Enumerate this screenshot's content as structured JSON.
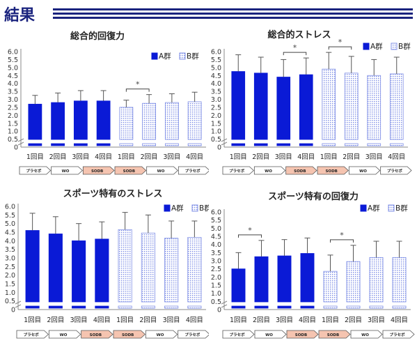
{
  "header": {
    "title": "結果"
  },
  "colors": {
    "accent": "#1a237e",
    "group_a": "#0a1ad6",
    "group_b_pattern": "#7f8fe6",
    "wo_arrow": "#ffffff",
    "diet_arrow": "#f5c4b0"
  },
  "chart_data": [
    {
      "type": "bar",
      "title": "総合的回復力",
      "categories": [
        "1回目",
        "2回目",
        "3回目",
        "4回目",
        "1回目",
        "2回目",
        "3回目",
        "4回目"
      ],
      "series": [
        {
          "name": "A群",
          "group_indices": [
            0,
            1,
            2,
            3
          ]
        },
        {
          "name": "B群",
          "group_indices": [
            4,
            5,
            6,
            7
          ]
        }
      ],
      "values": [
        2.7,
        2.8,
        2.9,
        2.9,
        2.5,
        2.75,
        2.8,
        2.85
      ],
      "errors": [
        0.55,
        0.6,
        0.65,
        0.65,
        0.45,
        0.55,
        0.55,
        0.6
      ],
      "ylim": [
        0,
        6.0
      ],
      "yticks": [
        "0",
        "0.5",
        "1.0",
        "1.5",
        "2.0",
        "2.5",
        "3.0",
        "3.5",
        "4.0",
        "4.5",
        "5.0",
        "5.5",
        "6.0"
      ],
      "legend_position": "top-right",
      "significance": [
        {
          "from": 4,
          "to": 5,
          "label": "*"
        }
      ],
      "phases": [
        {
          "label": "プラセボ",
          "style": "wo"
        },
        {
          "label": "WO",
          "style": "wo"
        },
        {
          "label": "SODB",
          "style": "diet"
        },
        {
          "label": "SODB",
          "style": "diet"
        },
        {
          "label": "WO",
          "style": "wo"
        },
        {
          "label": "プラセボ",
          "style": "wo"
        }
      ]
    },
    {
      "type": "bar",
      "title": "総合的ストレス",
      "categories": [
        "1回目",
        "2回目",
        "3回目",
        "4回目",
        "1回目",
        "2回目",
        "3回目",
        "4回目"
      ],
      "series": [
        {
          "name": "A群",
          "group_indices": [
            0,
            1,
            2,
            3
          ]
        },
        {
          "name": "B群",
          "group_indices": [
            4,
            5,
            6,
            7
          ]
        }
      ],
      "values": [
        4.75,
        4.65,
        4.4,
        4.55,
        4.9,
        4.65,
        4.5,
        4.6
      ],
      "errors": [
        1.05,
        1.0,
        1.1,
        1.05,
        1.05,
        1.05,
        1.0,
        1.05
      ],
      "ylim": [
        0,
        6.0
      ],
      "yticks": [
        "0",
        "0.5",
        "1.0",
        "1.5",
        "2.0",
        "2.5",
        "3.0",
        "3.5",
        "4.0",
        "4.5",
        "5.0",
        "5.5",
        "6.0"
      ],
      "legend_position": "top-right",
      "significance": [
        {
          "from": 2,
          "to": 3,
          "label": "*"
        },
        {
          "from": 4,
          "to": 5,
          "label": "*"
        }
      ],
      "phases": [
        {
          "label": "プラセボ",
          "style": "wo"
        },
        {
          "label": "WO",
          "style": "wo"
        },
        {
          "label": "SODB",
          "style": "diet"
        },
        {
          "label": "SODB",
          "style": "diet"
        },
        {
          "label": "WO",
          "style": "wo"
        },
        {
          "label": "プラセボ",
          "style": "wo"
        }
      ]
    },
    {
      "type": "bar",
      "title": "スポーツ特有のストレス",
      "categories": [
        "1回目",
        "2回目",
        "3回目",
        "4回目",
        "1回目",
        "2回目",
        "3回目",
        "4回目"
      ],
      "series": [
        {
          "name": "A群",
          "group_indices": [
            0,
            1,
            2,
            3
          ]
        },
        {
          "name": "B群",
          "group_indices": [
            4,
            5,
            6,
            7
          ]
        }
      ],
      "values": [
        4.6,
        4.4,
        4.0,
        4.1,
        4.65,
        4.45,
        4.15,
        4.2
      ],
      "errors": [
        1.0,
        1.0,
        1.0,
        1.0,
        1.0,
        1.05,
        1.0,
        0.95
      ],
      "ylim": [
        0,
        6.0
      ],
      "yticks": [
        "0",
        "0.5",
        "1.0",
        "1.5",
        "2.0",
        "2.5",
        "3.0",
        "3.5",
        "4.0",
        "4.5",
        "5.0",
        "5.5",
        "6.0"
      ],
      "legend_position": "top-right",
      "significance": [],
      "phases": [
        {
          "label": "プラセボ",
          "style": "wo"
        },
        {
          "label": "WO",
          "style": "wo"
        },
        {
          "label": "SODB",
          "style": "diet"
        },
        {
          "label": "SODB",
          "style": "diet"
        },
        {
          "label": "WO",
          "style": "wo"
        },
        {
          "label": "プラセボ",
          "style": "wo"
        }
      ]
    },
    {
      "type": "bar",
      "title": "スポーツ特有の回復力",
      "categories": [
        "1回目",
        "2回目",
        "3回目",
        "4回目",
        "1回目",
        "2回目",
        "3回目",
        "4回目"
      ],
      "series": [
        {
          "name": "A群",
          "group_indices": [
            0,
            1,
            2,
            3
          ]
        },
        {
          "name": "B群",
          "group_indices": [
            4,
            5,
            6,
            7
          ]
        }
      ],
      "values": [
        2.5,
        3.25,
        3.3,
        3.45,
        2.35,
        2.95,
        3.2,
        3.2
      ],
      "errors": [
        1.0,
        1.0,
        1.0,
        0.95,
        1.0,
        1.0,
        1.0,
        1.0
      ],
      "ylim": [
        0,
        6.0
      ],
      "yticks": [
        "0",
        "0.5",
        "1.0",
        "1.5",
        "2.0",
        "2.5",
        "3.0",
        "3.5",
        "4.0",
        "4.5",
        "5.0",
        "5.5",
        "6.0"
      ],
      "legend_position": "top-right",
      "significance": [
        {
          "from": 0,
          "to": 1,
          "label": "*"
        },
        {
          "from": 4,
          "to": 5,
          "label": "*"
        }
      ],
      "phases": [
        {
          "label": "プラセボ",
          "style": "wo"
        },
        {
          "label": "WO",
          "style": "wo"
        },
        {
          "label": "SODB",
          "style": "diet"
        },
        {
          "label": "SODB",
          "style": "diet"
        },
        {
          "label": "WO",
          "style": "wo"
        },
        {
          "label": "プラセボ",
          "style": "wo"
        }
      ]
    }
  ]
}
